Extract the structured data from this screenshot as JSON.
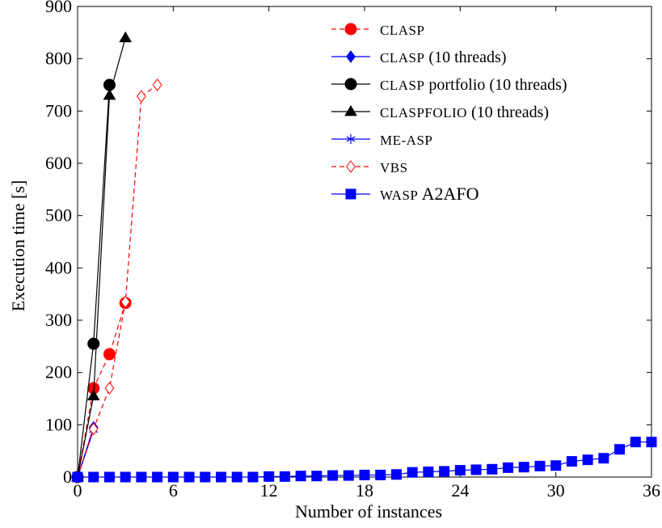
{
  "chart_data": {
    "type": "line",
    "title": "",
    "xlabel": "Number of instances",
    "ylabel": "Execution time [s]",
    "xlim": [
      0,
      36
    ],
    "ylim": [
      0,
      900
    ],
    "xticks": [
      0,
      6,
      12,
      18,
      24,
      30,
      36
    ],
    "yticks": [
      0,
      100,
      200,
      300,
      400,
      500,
      600,
      700,
      800,
      900
    ],
    "grid": false,
    "legend_position": "top-right",
    "series": [
      {
        "name": "CLASP",
        "legend_prefix": "CLASP",
        "legend_suffix": "",
        "color": "#ff0000",
        "dash": true,
        "marker": "circle",
        "x": [
          0,
          1,
          2,
          3
        ],
        "y": [
          0,
          170,
          235,
          333
        ]
      },
      {
        "name": "CLASP (10 threads)",
        "legend_prefix": "CLASP",
        "legend_suffix": " (10 threads)",
        "color": "#0000ff",
        "dash": false,
        "marker": "diamond",
        "x": [
          0,
          1
        ],
        "y": [
          0,
          95
        ]
      },
      {
        "name": "CLASP portfolio (10 threads)",
        "legend_prefix": "CLASP",
        "legend_suffix": " portfolio (10 threads)",
        "color": "#000000",
        "dash": false,
        "marker": "circle",
        "x": [
          0,
          1,
          2
        ],
        "y": [
          0,
          255,
          750
        ]
      },
      {
        "name": "CLASPFOLIO (10 threads)",
        "legend_prefix": "CLASPFOLIO",
        "legend_suffix": " (10 threads)",
        "color": "#000000",
        "dash": false,
        "marker": "triangle",
        "x": [
          0,
          1,
          2,
          3
        ],
        "y": [
          0,
          155,
          730,
          840
        ]
      },
      {
        "name": "ME-ASP",
        "legend_prefix": "ME-ASP",
        "legend_suffix": "",
        "color": "#0000ff",
        "dash": false,
        "marker": "star",
        "x": [
          0,
          1
        ],
        "y": [
          0,
          90
        ]
      },
      {
        "name": "VBS",
        "legend_prefix": "VBS",
        "legend_suffix": "",
        "color": "#ff0000",
        "dash": true,
        "marker": "diamond-open",
        "x": [
          0,
          1,
          2,
          3,
          4,
          5
        ],
        "y": [
          0,
          92,
          170,
          335,
          728,
          750
        ]
      },
      {
        "name": "WASP A2AFO",
        "legend_prefix": "WASP",
        "legend_suffix": " A2AFO",
        "color": "#0000ff",
        "dash": false,
        "marker": "square",
        "x": [
          0,
          1,
          2,
          3,
          4,
          5,
          6,
          7,
          8,
          9,
          10,
          11,
          12,
          13,
          14,
          15,
          16,
          17,
          18,
          19,
          20,
          21,
          22,
          23,
          24,
          25,
          26,
          27,
          28,
          29,
          30,
          31,
          32,
          33,
          34,
          35,
          36
        ],
        "y": [
          0,
          0,
          0,
          0,
          0,
          0,
          0,
          0,
          0,
          0,
          0,
          0,
          1,
          1,
          2,
          2,
          3,
          3,
          4,
          4,
          5,
          9,
          10,
          11,
          13,
          14,
          15,
          18,
          19,
          21,
          22,
          30,
          33,
          36,
          53,
          67,
          67
        ]
      }
    ]
  }
}
